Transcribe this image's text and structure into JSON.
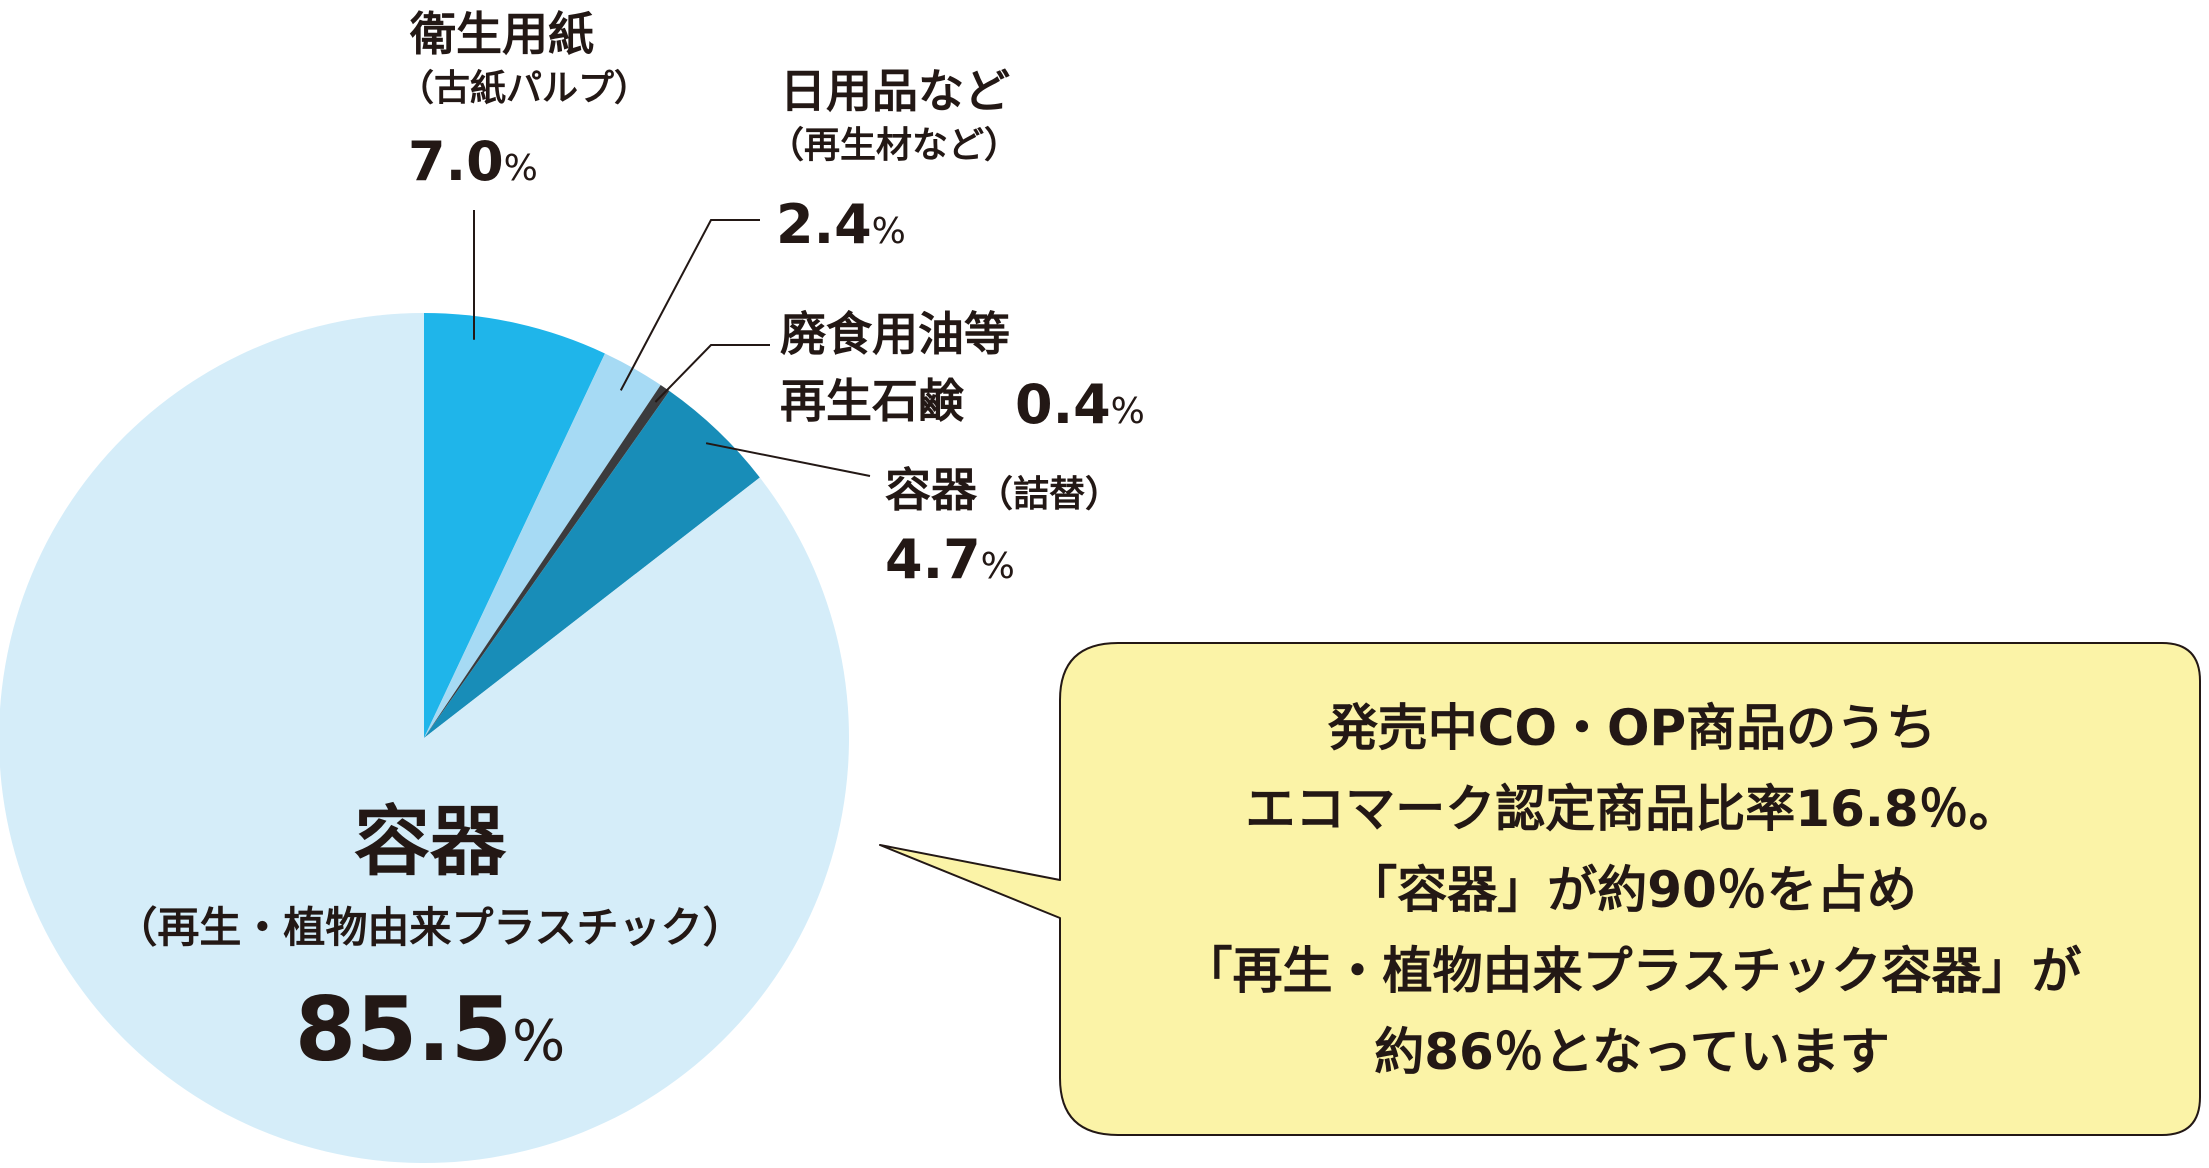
{
  "chart_data": {
    "type": "pie",
    "slices": [
      {
        "name": "衛生用紙",
        "sub": "（古紙パルプ）",
        "value": 7.0,
        "display": "7.0",
        "color": "#1fb5ea"
      },
      {
        "name": "日用品など",
        "sub": "（再生材など）",
        "value": 2.4,
        "display": "2.4",
        "color": "#a6daf4"
      },
      {
        "name": "廃食用油等",
        "name2": "再生石鹸",
        "value": 0.4,
        "display": "0.4",
        "color": "#3b3b3d"
      },
      {
        "name": "容器",
        "sub": "（詰替）",
        "value": 4.7,
        "display": "4.7",
        "color": "#188db8"
      },
      {
        "name": "容器",
        "sub": "（再生・植物由来プラスチック）",
        "value": 85.5,
        "display": "85.5",
        "color": "#d5edf9"
      }
    ],
    "unit": "%"
  },
  "callout": {
    "lines": [
      "発売中CO・OP商品のうち",
      "エコマーク認定商品比率16.8％。",
      "「容器」が約90％を占め",
      "「再生・植物由来プラスチック容器」が",
      "約86％となっています"
    ],
    "fill": "#fbf3a7"
  }
}
